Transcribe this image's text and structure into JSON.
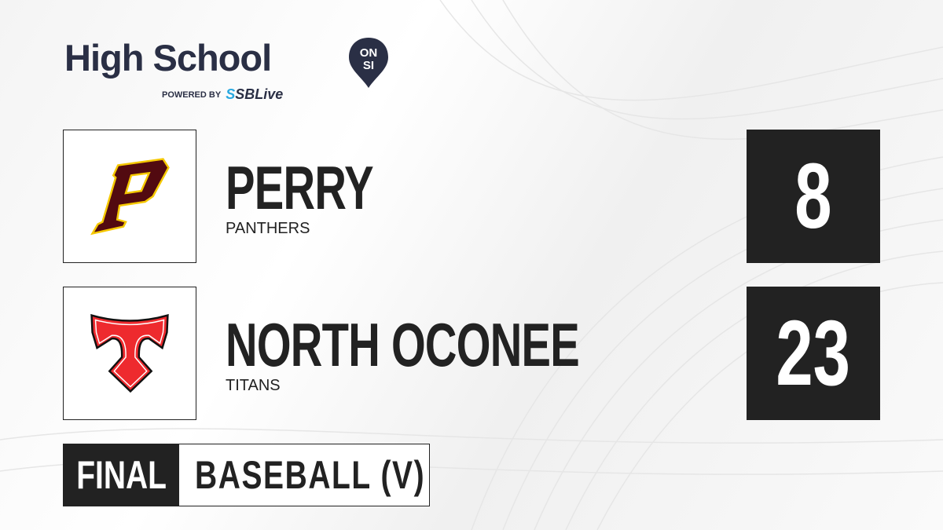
{
  "brand": {
    "title": "High School",
    "badge_top": "ON",
    "badge_bottom": "SI",
    "powered_by": "POWERED BY",
    "partner_prefix": "S",
    "partner": "SBLive"
  },
  "teams": [
    {
      "name": "PERRY",
      "mascot": "PANTHERS",
      "score": "8",
      "logo": "perry-p-logo",
      "colors": {
        "primary": "#520a10",
        "outline": "#f5c800"
      }
    },
    {
      "name": "NORTH OCONEE",
      "mascot": "TITANS",
      "score": "23",
      "logo": "titans-t-logo",
      "colors": {
        "primary": "#ee2a2e",
        "outline": "#111111"
      }
    }
  ],
  "status": "FINAL",
  "sport": "BASEBALL (V)",
  "colors": {
    "dark": "#222222",
    "brand_navy": "#2a2f45",
    "partner_blue": "#29a8e0"
  }
}
